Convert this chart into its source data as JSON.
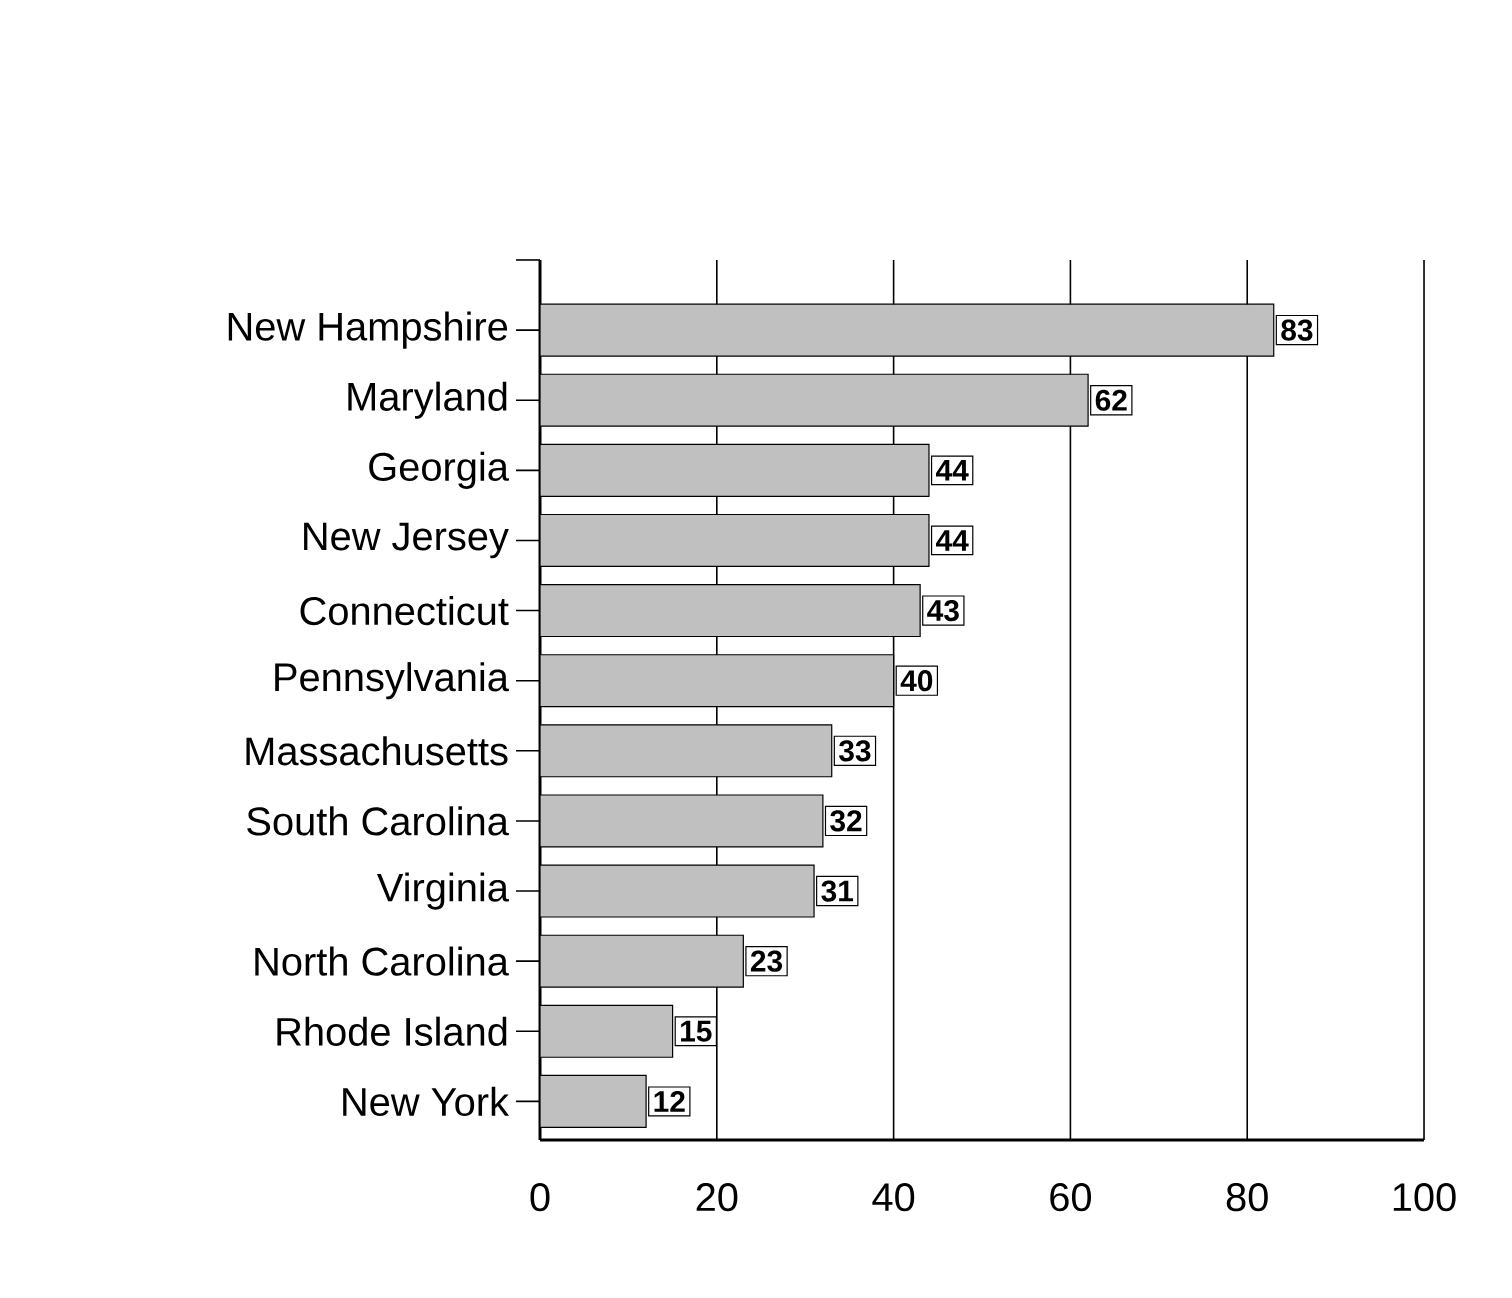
{
  "chart_data": {
    "type": "bar",
    "orientation": "horizontal",
    "categories": [
      "New Hampshire",
      "Maryland",
      "Georgia",
      "New Jersey",
      "Connecticut",
      "Pennsylvania",
      "Massachusetts",
      "South Carolina",
      "Virginia",
      "North Carolina",
      "Rhode Island",
      "New York"
    ],
    "values": [
      83,
      62,
      44,
      44,
      43,
      40,
      33,
      32,
      31,
      23,
      15,
      12
    ],
    "color": "#c0c0c0",
    "xlim": [
      0,
      100
    ],
    "xticks": [
      0,
      20,
      40,
      60,
      80,
      100
    ],
    "grid": "x",
    "data_labels": true
  }
}
